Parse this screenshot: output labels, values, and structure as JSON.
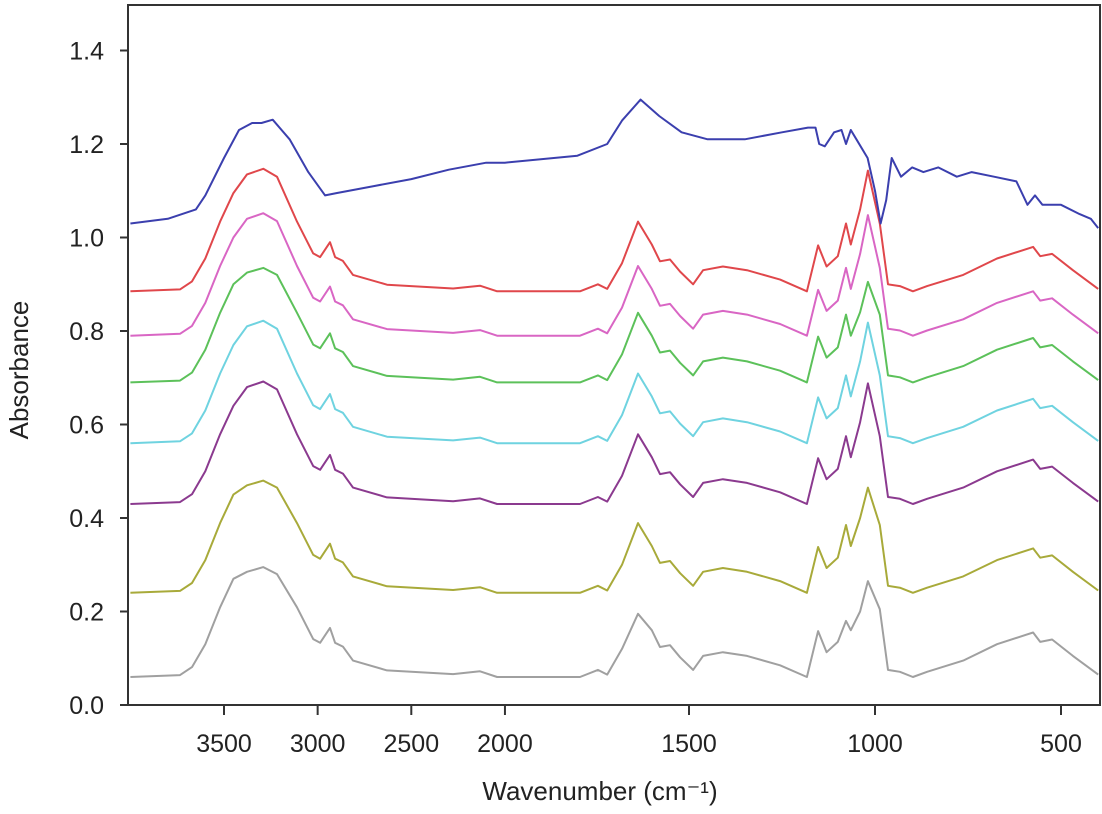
{
  "chart_data": {
    "type": "line",
    "title": "",
    "xlabel": "Wavenumber (cm⁻¹)",
    "ylabel": "Absorbance",
    "xlim": [
      4000,
      400
    ],
    "ylim": [
      0.0,
      1.5
    ],
    "x_axis_note": "x-axis is compressed above 2000 cm-1",
    "x_ticks": [
      3500,
      3000,
      2500,
      2000,
      1500,
      1000,
      500
    ],
    "x_tick_labels": [
      "3500",
      "3000",
      "2500",
      "2000",
      "1500",
      "1000",
      "500"
    ],
    "y_ticks": [
      0.0,
      0.2,
      0.4,
      0.6,
      0.8,
      1.0,
      1.2,
      1.4
    ],
    "y_tick_labels": [
      "0.0",
      "0.2",
      "0.4",
      "0.6",
      "0.8",
      "1.0",
      "1.2",
      "1.4"
    ],
    "grid": false,
    "legend": "none",
    "x": [
      4000,
      3735,
      3671,
      3600,
      3521,
      3450,
      3377,
      3290,
      3217,
      3110,
      3024,
      2987,
      2934,
      2907,
      2865,
      2811,
      2630,
      2277,
      2133,
      2042,
      1793,
      1745,
      1720,
      1680,
      1637,
      1600,
      1578,
      1551,
      1524,
      1489,
      1462,
      1409,
      1344,
      1255,
      1183,
      1153,
      1130,
      1100,
      1078,
      1065,
      1040,
      1019,
      987,
      965,
      933,
      898,
      860,
      763,
      672,
      575,
      556,
      524,
      468,
      400
    ],
    "series": [
      {
        "name": "red",
        "color": "#e0474b",
        "y": [
          0.885,
          0.889,
          0.906,
          0.955,
          1.034,
          1.095,
          1.135,
          1.147,
          1.13,
          1.034,
          0.966,
          0.958,
          0.99,
          0.958,
          0.95,
          0.92,
          0.899,
          0.891,
          0.897,
          0.885,
          0.885,
          0.9,
          0.89,
          0.945,
          1.034,
          0.985,
          0.949,
          0.953,
          0.927,
          0.9,
          0.93,
          0.938,
          0.93,
          0.91,
          0.885,
          0.983,
          0.938,
          0.96,
          1.03,
          0.985,
          1.06,
          1.143,
          1.03,
          0.9,
          0.896,
          0.885,
          0.896,
          0.92,
          0.955,
          0.98,
          0.96,
          0.965,
          0.93,
          0.89
        ]
      },
      {
        "name": "pink",
        "color": "#d966c4",
        "y": [
          0.79,
          0.794,
          0.811,
          0.86,
          0.939,
          1.0,
          1.04,
          1.052,
          1.035,
          0.939,
          0.871,
          0.863,
          0.895,
          0.863,
          0.855,
          0.825,
          0.804,
          0.796,
          0.802,
          0.79,
          0.79,
          0.805,
          0.795,
          0.85,
          0.939,
          0.89,
          0.854,
          0.858,
          0.832,
          0.805,
          0.835,
          0.843,
          0.835,
          0.815,
          0.79,
          0.888,
          0.843,
          0.865,
          0.935,
          0.89,
          0.965,
          1.048,
          0.935,
          0.805,
          0.801,
          0.79,
          0.801,
          0.825,
          0.86,
          0.885,
          0.865,
          0.87,
          0.835,
          0.795
        ]
      },
      {
        "name": "green",
        "color": "#5cc15a",
        "y": [
          0.69,
          0.694,
          0.711,
          0.76,
          0.839,
          0.9,
          0.925,
          0.935,
          0.92,
          0.839,
          0.771,
          0.763,
          0.795,
          0.763,
          0.755,
          0.725,
          0.704,
          0.696,
          0.702,
          0.69,
          0.69,
          0.705,
          0.695,
          0.75,
          0.839,
          0.79,
          0.754,
          0.758,
          0.732,
          0.705,
          0.735,
          0.743,
          0.735,
          0.715,
          0.69,
          0.788,
          0.743,
          0.765,
          0.835,
          0.79,
          0.84,
          0.905,
          0.835,
          0.705,
          0.701,
          0.69,
          0.701,
          0.725,
          0.76,
          0.785,
          0.765,
          0.77,
          0.735,
          0.695
        ]
      },
      {
        "name": "cyan",
        "color": "#6fd3e0",
        "y": [
          0.56,
          0.564,
          0.581,
          0.63,
          0.709,
          0.77,
          0.81,
          0.822,
          0.805,
          0.709,
          0.641,
          0.633,
          0.665,
          0.633,
          0.625,
          0.595,
          0.574,
          0.566,
          0.572,
          0.56,
          0.56,
          0.575,
          0.565,
          0.62,
          0.709,
          0.66,
          0.624,
          0.628,
          0.602,
          0.575,
          0.605,
          0.613,
          0.605,
          0.585,
          0.56,
          0.658,
          0.613,
          0.635,
          0.705,
          0.66,
          0.735,
          0.818,
          0.705,
          0.575,
          0.571,
          0.56,
          0.571,
          0.595,
          0.63,
          0.655,
          0.635,
          0.64,
          0.605,
          0.565
        ]
      },
      {
        "name": "purple",
        "color": "#8b3a8f",
        "y": [
          0.43,
          0.434,
          0.451,
          0.5,
          0.579,
          0.64,
          0.68,
          0.692,
          0.675,
          0.579,
          0.511,
          0.503,
          0.535,
          0.503,
          0.495,
          0.465,
          0.444,
          0.436,
          0.442,
          0.43,
          0.43,
          0.445,
          0.435,
          0.49,
          0.579,
          0.53,
          0.494,
          0.498,
          0.472,
          0.445,
          0.475,
          0.483,
          0.475,
          0.455,
          0.43,
          0.528,
          0.483,
          0.505,
          0.575,
          0.53,
          0.605,
          0.688,
          0.575,
          0.445,
          0.441,
          0.43,
          0.441,
          0.465,
          0.5,
          0.525,
          0.505,
          0.51,
          0.475,
          0.435
        ]
      },
      {
        "name": "olive",
        "color": "#a8aa3a",
        "y": [
          0.24,
          0.244,
          0.261,
          0.31,
          0.389,
          0.45,
          0.47,
          0.48,
          0.465,
          0.389,
          0.321,
          0.313,
          0.345,
          0.313,
          0.305,
          0.275,
          0.254,
          0.246,
          0.252,
          0.24,
          0.24,
          0.255,
          0.245,
          0.3,
          0.389,
          0.34,
          0.304,
          0.308,
          0.282,
          0.255,
          0.285,
          0.293,
          0.285,
          0.265,
          0.24,
          0.338,
          0.293,
          0.315,
          0.385,
          0.34,
          0.4,
          0.465,
          0.385,
          0.255,
          0.251,
          0.24,
          0.251,
          0.275,
          0.31,
          0.335,
          0.315,
          0.32,
          0.285,
          0.245
        ]
      },
      {
        "name": "gray",
        "color": "#a0a0a0",
        "y": [
          0.06,
          0.064,
          0.081,
          0.13,
          0.209,
          0.27,
          0.285,
          0.295,
          0.28,
          0.209,
          0.141,
          0.133,
          0.165,
          0.133,
          0.125,
          0.095,
          0.074,
          0.066,
          0.072,
          0.06,
          0.06,
          0.075,
          0.065,
          0.12,
          0.195,
          0.16,
          0.124,
          0.128,
          0.102,
          0.075,
          0.105,
          0.113,
          0.105,
          0.085,
          0.06,
          0.158,
          0.113,
          0.135,
          0.18,
          0.16,
          0.2,
          0.265,
          0.205,
          0.075,
          0.071,
          0.06,
          0.071,
          0.095,
          0.13,
          0.155,
          0.135,
          0.14,
          0.105,
          0.065
        ]
      }
    ],
    "top_series": {
      "name": "blue",
      "color": "#3b3fae",
      "x": [
        4000,
        3800,
        3650,
        3600,
        3500,
        3420,
        3350,
        3300,
        3240,
        3150,
        3050,
        2960,
        2900,
        2700,
        2500,
        2300,
        2100,
        2000,
        1800,
        1720,
        1680,
        1630,
        1580,
        1520,
        1450,
        1350,
        1250,
        1180,
        1160,
        1150,
        1135,
        1110,
        1090,
        1078,
        1065,
        1050,
        1020,
        1000,
        985,
        970,
        955,
        930,
        900,
        870,
        830,
        780,
        740,
        680,
        620,
        590,
        570,
        550,
        500,
        450,
        420,
        400
      ],
      "y": [
        1.03,
        1.04,
        1.06,
        1.09,
        1.17,
        1.23,
        1.245,
        1.245,
        1.252,
        1.21,
        1.14,
        1.09,
        1.095,
        1.11,
        1.125,
        1.145,
        1.16,
        1.16,
        1.175,
        1.2,
        1.25,
        1.295,
        1.26,
        1.225,
        1.21,
        1.21,
        1.225,
        1.235,
        1.235,
        1.2,
        1.195,
        1.225,
        1.23,
        1.2,
        1.23,
        1.21,
        1.17,
        1.1,
        1.03,
        1.08,
        1.17,
        1.13,
        1.15,
        1.14,
        1.15,
        1.13,
        1.14,
        1.13,
        1.12,
        1.07,
        1.09,
        1.07,
        1.07,
        1.05,
        1.04,
        1.02
      ]
    }
  }
}
